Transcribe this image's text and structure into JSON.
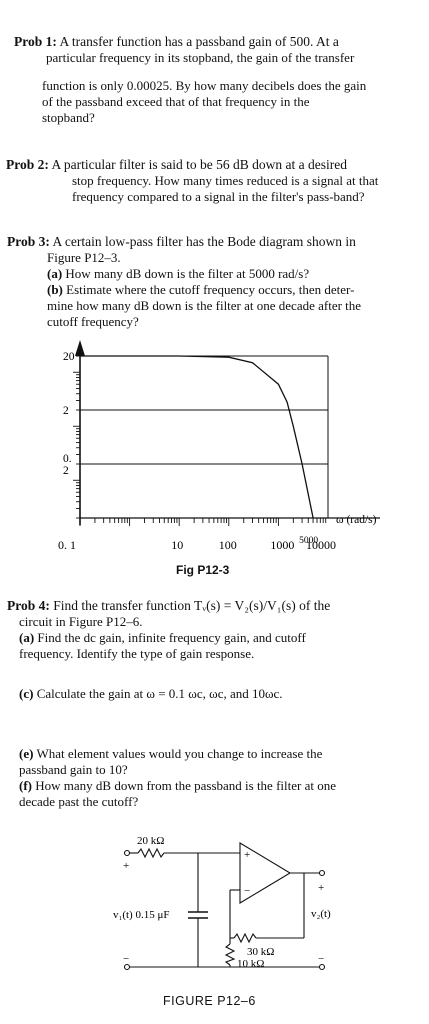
{
  "prob1": {
    "label": "Prob 1:",
    "line1": "A transfer function has a passband gain of 500. At a",
    "line2": "particular frequency in its stopband, the gain of the transfer",
    "line3": "function is only 0.00025. By how many decibels does the gain",
    "line4": "of the passband exceed that of that frequency in the",
    "line5": "stopband?"
  },
  "prob2": {
    "label": "Prob 2:",
    "line1": "A particular filter is said to be 56 dB down at a desired",
    "line2": "stop frequency. How many times reduced is a signal at that",
    "line3": "frequency compared to a signal in the filter's pass-band?"
  },
  "prob3": {
    "label": "Prob 3:",
    "line1": "A certain low-pass filter has the Bode diagram shown in",
    "line2": "Figure P12–3.",
    "a_label": "(a)",
    "a_text": "How many dB down is the filter at 5000 rad/s?",
    "b_label": "(b)",
    "b_text1": "Estimate where the cutoff frequency occurs, then deter-",
    "b_text2": "mine how many dB down is the filter at one decade after the",
    "b_text3": "cutoff frequency?"
  },
  "chart_data": {
    "type": "line",
    "title": "",
    "y_ticks": [
      "20",
      "2",
      "0.\n2"
    ],
    "x_ticks": [
      "0. 1",
      "10",
      "100",
      "1000",
      "10000"
    ],
    "x_extra_label": "5000",
    "xlabel": "ω (rad/s)",
    "x_log": true,
    "y_log": true,
    "xlim": [
      0.1,
      10000
    ],
    "ylim": [
      0.02,
      20
    ],
    "grid": "horizontal",
    "series": [
      {
        "x": [
          0.1,
          10,
          100,
          300,
          1000,
          1500,
          2000,
          3000,
          5000
        ],
        "y": [
          20,
          20,
          19,
          15,
          6,
          2.8,
          1,
          0.2,
          0.02
        ]
      }
    ]
  },
  "figure1_caption": "Fig P12-3",
  "prob4": {
    "label": "Prob 4:",
    "line1": "Find the transfer function Tᵥ(s) = V₂(s)/V₁(s) of the",
    "line2": "circuit in Figure P12–6.",
    "a_label": "(a)",
    "a_text1": "Find the dc gain, infinite frequency gain, and cutoff",
    "a_text2": "frequency. Identify the type of gain response.",
    "c_label": "(c)",
    "c_text": "Calculate the gain at ω = 0.1 ωc, ωc, and 10ωc.",
    "e_label": "(e)",
    "e_text1": "What element values would you change to increase the",
    "e_text2": "passband gain to 10?",
    "f_label": "(f)",
    "f_text1": "How many dB down from the passband is the filter at one",
    "f_text2": "decade past the cutoff?"
  },
  "circuit": {
    "r1": "20 kΩ",
    "c1": "v₁(t) 0.15 μF",
    "r2": "30 kΩ",
    "r3": "10 kΩ",
    "out": "v₂(t)",
    "plus": "+",
    "minus": "−"
  },
  "figure2_caption": "FIGURE P12–6"
}
